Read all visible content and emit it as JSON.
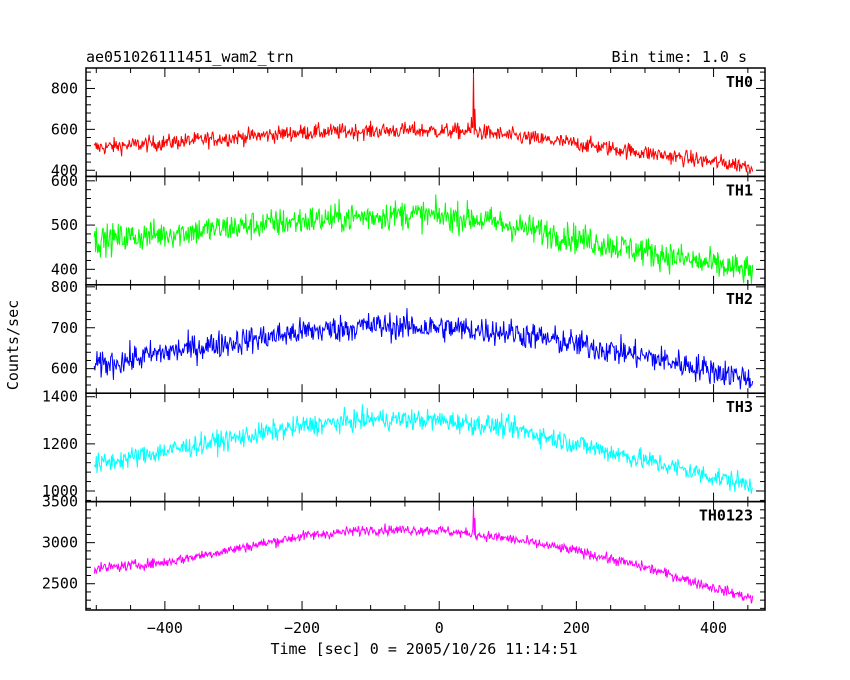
{
  "title_left": "ae051026111451_wam2_trn",
  "title_right": "Bin time: 1.0 s",
  "ylabel": "Counts/sec",
  "xlabel": "Time [sec] 0 = 2005/10/26 11:14:51",
  "chart_data": {
    "type": "line",
    "x_range": [
      -515,
      475
    ],
    "x_ticks": [
      -400,
      -200,
      0,
      200,
      400
    ],
    "x_tick_labels": [
      "−400",
      "−200",
      "0",
      "200",
      "400"
    ],
    "data_x_range": [
      -503,
      457
    ],
    "bin_time_s": 1.0,
    "panels": [
      {
        "name": "TH0",
        "color": "#ff0000",
        "ylim": [
          370,
          900
        ],
        "yticks": [
          400,
          600,
          800
        ],
        "ytick_labels": [
          "400",
          "600",
          "800"
        ],
        "trend": [
          [
            -503,
            510
          ],
          [
            -400,
            535
          ],
          [
            -200,
            585
          ],
          [
            -50,
            595
          ],
          [
            50,
            590
          ],
          [
            200,
            530
          ],
          [
            300,
            485
          ],
          [
            400,
            440
          ],
          [
            457,
            420
          ]
        ],
        "noise": 28,
        "spikes": [
          [
            50,
            890
          ],
          [
            52,
            700
          ],
          [
            47,
            660
          ]
        ]
      },
      {
        "name": "TH1",
        "color": "#00ff00",
        "ylim": [
          365,
          610
        ],
        "yticks": [
          400,
          500,
          600
        ],
        "ytick_labels": [
          "400",
          "500",
          "600"
        ],
        "trend": [
          [
            -503,
            465
          ],
          [
            -400,
            480
          ],
          [
            -200,
            510
          ],
          [
            -50,
            525
          ],
          [
            50,
            515
          ],
          [
            200,
            470
          ],
          [
            300,
            440
          ],
          [
            400,
            410
          ],
          [
            457,
            395
          ]
        ],
        "noise": 24,
        "spikes": []
      },
      {
        "name": "TH2",
        "color": "#0000ff",
        "ylim": [
          540,
          805
        ],
        "yticks": [
          600,
          700,
          800
        ],
        "ytick_labels": [
          "600",
          "700",
          "800"
        ],
        "trend": [
          [
            -503,
            605
          ],
          [
            -400,
            640
          ],
          [
            -200,
            690
          ],
          [
            -100,
            705
          ],
          [
            0,
            700
          ],
          [
            100,
            690
          ],
          [
            200,
            660
          ],
          [
            300,
            630
          ],
          [
            400,
            595
          ],
          [
            457,
            575
          ]
        ],
        "noise": 24,
        "spikes": []
      },
      {
        "name": "TH3",
        "color": "#00ffff",
        "ylim": [
          955,
          1415
        ],
        "yticks": [
          1000,
          1200,
          1400
        ],
        "ytick_labels": [
          "1000",
          "1200",
          "1400"
        ],
        "trend": [
          [
            -503,
            1110
          ],
          [
            -400,
            1170
          ],
          [
            -200,
            1275
          ],
          [
            -100,
            1305
          ],
          [
            0,
            1300
          ],
          [
            100,
            1270
          ],
          [
            200,
            1200
          ],
          [
            300,
            1130
          ],
          [
            400,
            1060
          ],
          [
            457,
            1025
          ]
        ],
        "noise": 32,
        "spikes": []
      },
      {
        "name": "TH0123",
        "color": "#ff00ff",
        "ylim": [
          2180,
          3500
        ],
        "yticks": [
          2500,
          3000,
          3500
        ],
        "ytick_labels": [
          "2500",
          "3000",
          "3500"
        ],
        "trend": [
          [
            -503,
            2680
          ],
          [
            -400,
            2760
          ],
          [
            -300,
            2920
          ],
          [
            -200,
            3080
          ],
          [
            -100,
            3160
          ],
          [
            0,
            3150
          ],
          [
            100,
            3050
          ],
          [
            200,
            2900
          ],
          [
            300,
            2700
          ],
          [
            400,
            2450
          ],
          [
            457,
            2320
          ]
        ],
        "noise": 45,
        "spikes": [
          [
            50,
            3460
          ],
          [
            52,
            3300
          ]
        ]
      }
    ]
  }
}
